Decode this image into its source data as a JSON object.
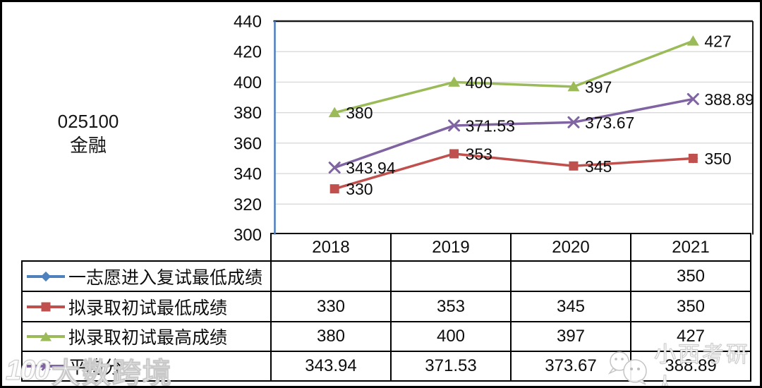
{
  "program": {
    "code": "025100",
    "name": "金融"
  },
  "chart_data": {
    "type": "line",
    "categories": [
      "2018",
      "2019",
      "2020",
      "2021"
    ],
    "series": [
      {
        "name": "一志愿进入复试最低成绩",
        "marker": "diamond",
        "color": "#4F81BD",
        "show_labels": false,
        "values": [
          null,
          null,
          null,
          350
        ]
      },
      {
        "name": "拟录取初试最低成绩",
        "marker": "square",
        "color": "#C0504D",
        "show_labels": true,
        "values": [
          330,
          353,
          345,
          350
        ]
      },
      {
        "name": "拟录取初试最高成绩",
        "marker": "triangle",
        "color": "#9BBB59",
        "show_labels": true,
        "values": [
          380,
          400,
          397,
          427
        ]
      },
      {
        "name": "平均分",
        "marker": "x",
        "color": "#8064A2",
        "show_labels": true,
        "values": [
          343.94,
          371.53,
          373.67,
          388.89
        ]
      }
    ],
    "title": "",
    "xlabel": "",
    "ylabel": "",
    "ylim": [
      300,
      440
    ],
    "yticks": [
      300,
      320,
      340,
      360,
      380,
      400,
      420,
      440
    ],
    "grid": true,
    "gridline_color": "#d9d9d9",
    "axis_line_color": "#4a7fc1",
    "border_color": "#1a1a1a",
    "legend_position": "table-left"
  },
  "table": {
    "years": [
      "2018",
      "2019",
      "2020",
      "2021"
    ],
    "rows": [
      {
        "label": "一志愿进入复试最低成绩",
        "values": [
          "",
          "",
          "",
          "350"
        ]
      },
      {
        "label": "拟录取初试最低成绩",
        "values": [
          "330",
          "353",
          "345",
          "350"
        ]
      },
      {
        "label": "拟录取初试最高成绩",
        "values": [
          "380",
          "400",
          "397",
          "427"
        ]
      },
      {
        "label": "平均分",
        "values": [
          "343.94",
          "371.53",
          "373.67",
          "388.89"
        ]
      }
    ]
  },
  "watermarks": {
    "bottom_left_logo": "100",
    "bottom_left_text": "大数跨境",
    "right_icon": "wechat-icon",
    "right_text": "小西考研人"
  }
}
